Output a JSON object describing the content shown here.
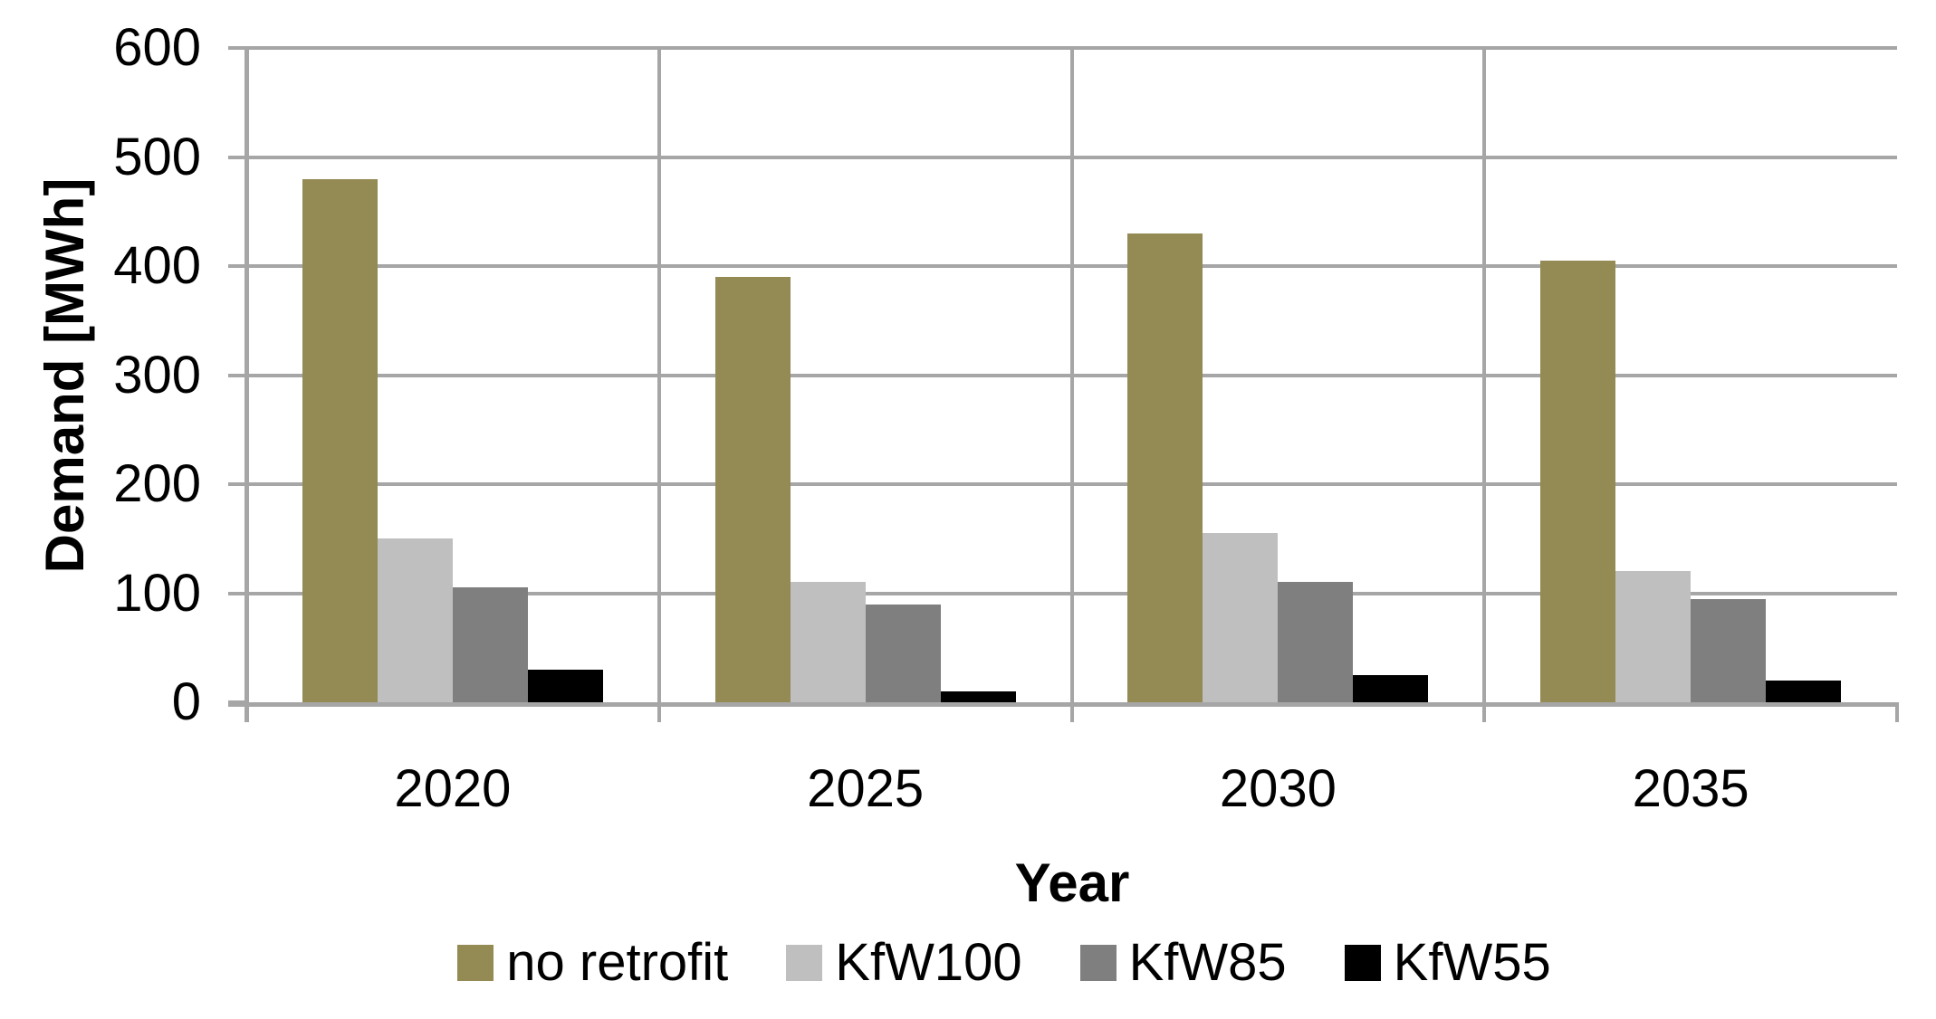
{
  "chart_data": {
    "type": "bar",
    "title": "",
    "categories": [
      "2020",
      "2025",
      "2030",
      "2035"
    ],
    "series": [
      {
        "name": "no retrofit",
        "color": "#948A54",
        "values": [
          480,
          390,
          430,
          405
        ]
      },
      {
        "name": "KfW100",
        "color": "#BFBFBF",
        "values": [
          150,
          110,
          155,
          120
        ]
      },
      {
        "name": "KfW85",
        "color": "#7F7F7F",
        "values": [
          105,
          90,
          110,
          95
        ]
      },
      {
        "name": "KfW55",
        "color": "#000000",
        "values": [
          30,
          10,
          25,
          20
        ]
      }
    ],
    "xlabel": "Year",
    "ylabel": "Demand [MWh]",
    "ylim": [
      0,
      600
    ],
    "ytick_step": 100,
    "yticks": [
      0,
      100,
      200,
      300,
      400,
      500,
      600
    ],
    "grid": "horizontal gridlines plus vertical category-boundary gridlines",
    "legend_position": "bottom-center",
    "colors": {
      "gridline": "#A6A6A6",
      "axis": "#A6A6A6",
      "text": "#000000",
      "background": "#FFFFFF"
    }
  }
}
